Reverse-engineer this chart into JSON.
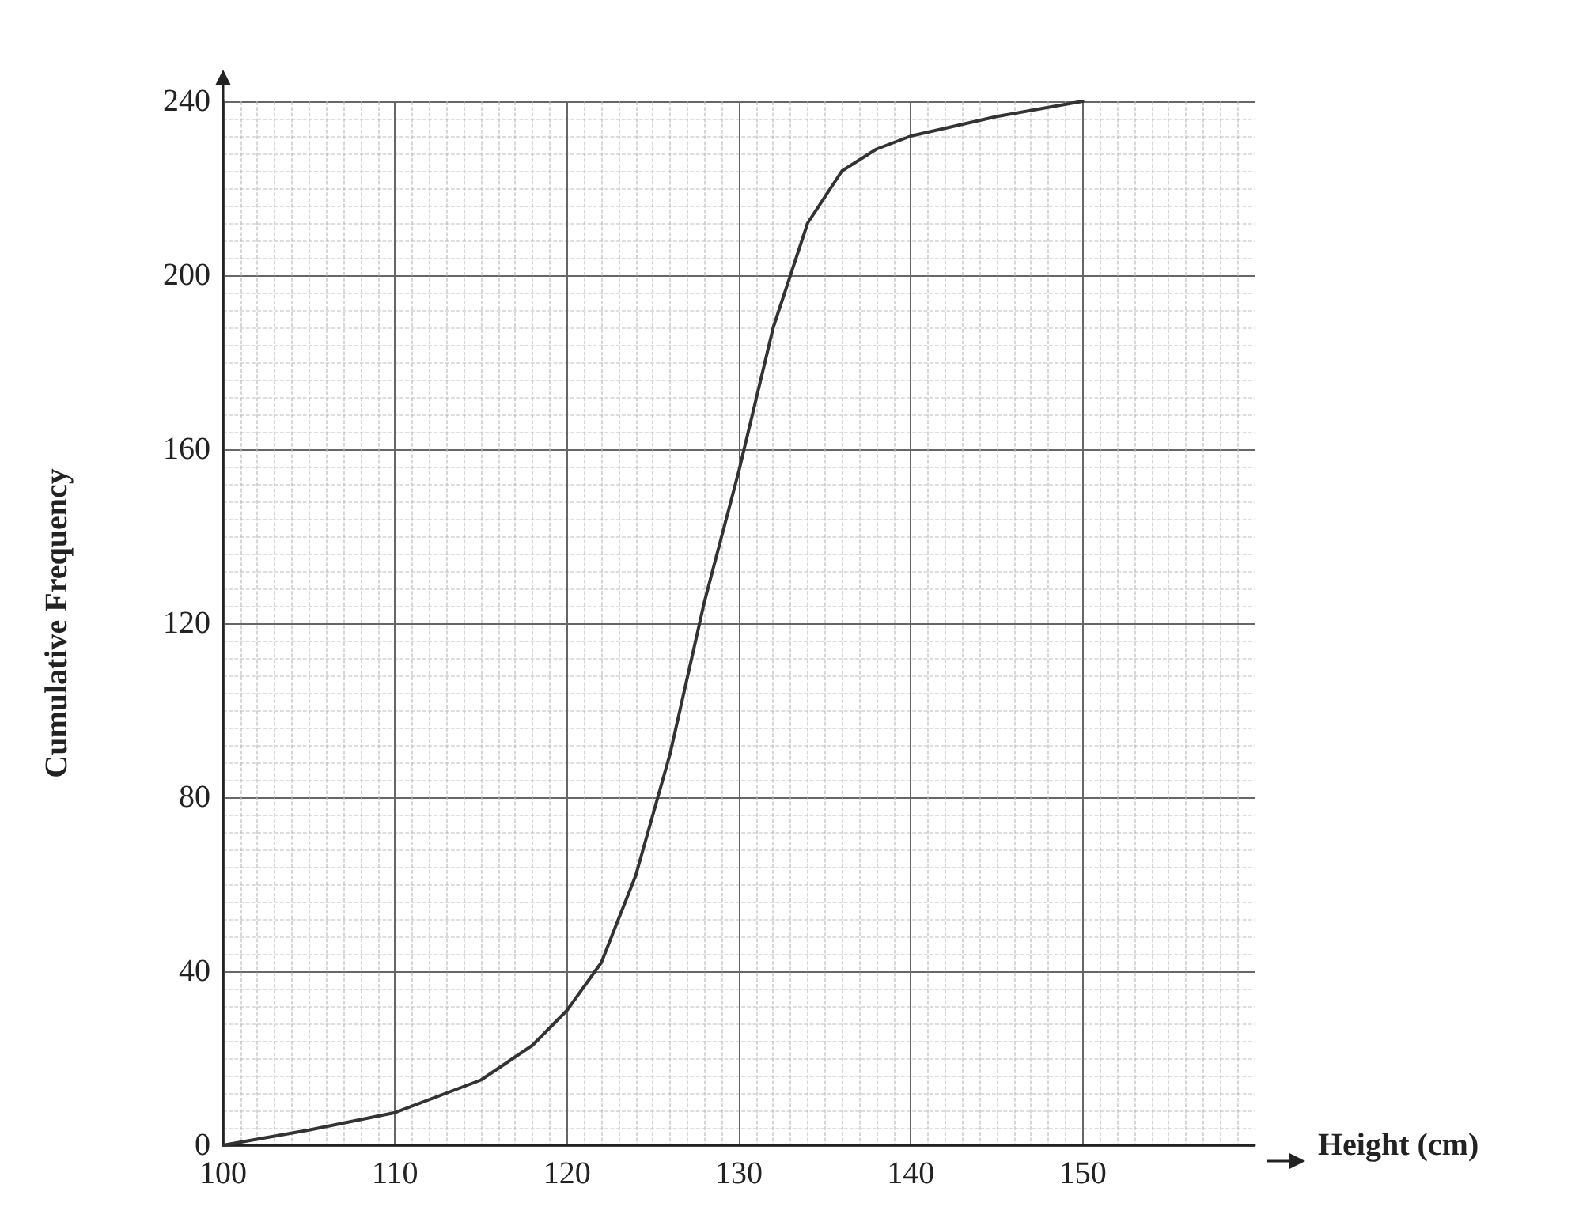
{
  "chart_data": {
    "type": "line",
    "xlabel": "Height (cm)",
    "ylabel": "Cumulative Frequency",
    "x": [
      100,
      105,
      110,
      115,
      118,
      120,
      122,
      124,
      126,
      128,
      130,
      132,
      134,
      136,
      138,
      140,
      145,
      150
    ],
    "series": [
      {
        "color": "#333333",
        "values": [
          0,
          3.5,
          7.5,
          15,
          23,
          31,
          42,
          62,
          90,
          125,
          155,
          188,
          212,
          224,
          229,
          232,
          236.5,
          240
        ]
      }
    ],
    "xlim": [
      100,
      160
    ],
    "xticks": [
      100,
      110,
      120,
      130,
      140,
      150
    ],
    "ylim": [
      0,
      240
    ],
    "yticks": [
      0,
      40,
      80,
      120,
      160,
      200,
      240
    ],
    "grid": true,
    "marker": "none",
    "line_style": "solid"
  }
}
